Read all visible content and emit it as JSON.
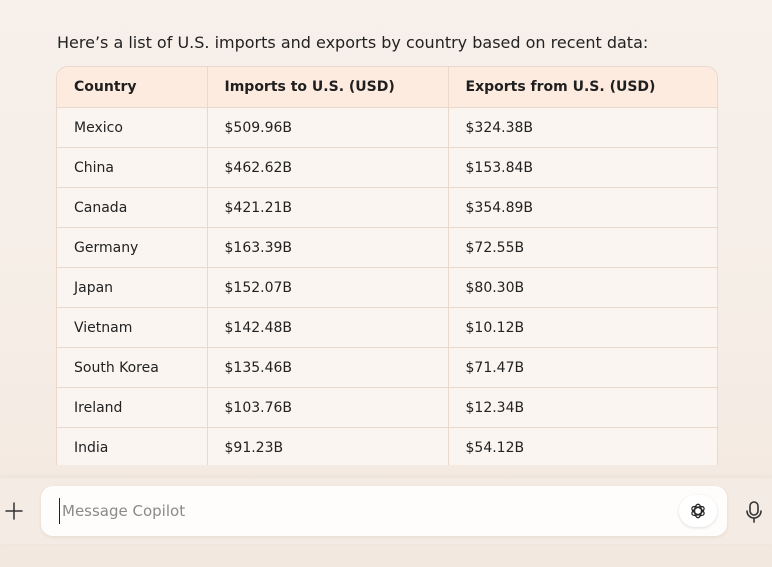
{
  "message": {
    "intro": "Here’s a list of U.S. imports and exports by country based on recent data:"
  },
  "table": {
    "headers": [
      "Country",
      "Imports to U.S. (USD)",
      "Exports from U.S. (USD)"
    ],
    "rows": [
      [
        "Mexico",
        "$509.96B",
        "$324.38B"
      ],
      [
        "China",
        "$462.62B",
        "$153.84B"
      ],
      [
        "Canada",
        "$421.21B",
        "$354.89B"
      ],
      [
        "Germany",
        "$163.39B",
        "$72.55B"
      ],
      [
        "Japan",
        "$152.07B",
        "$80.30B"
      ],
      [
        "Vietnam",
        "$142.48B",
        "$10.12B"
      ],
      [
        "South Korea",
        "$135.46B",
        "$71.47B"
      ],
      [
        "Ireland",
        "$103.76B",
        "$12.34B"
      ],
      [
        "India",
        "$91.23B",
        "$54.12B"
      ]
    ]
  },
  "composer": {
    "placeholder": "Message Copilot",
    "plus_icon": "plus-icon",
    "tool_icon": "openai-icon",
    "mic_icon": "microphone-icon"
  }
}
